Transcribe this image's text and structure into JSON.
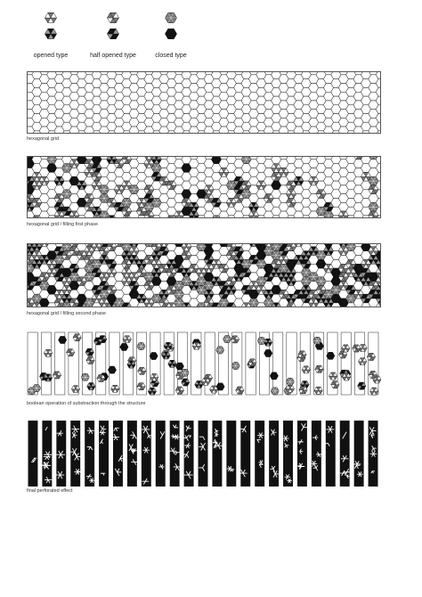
{
  "legend": {
    "opened": "opened type",
    "half_opened": "half opened type",
    "closed": "closed type"
  },
  "captions": {
    "grid": "hexagonal grid",
    "first_phase": "hexagonal grid / filling first phase",
    "second_phase": "hexagonal grid / filling second phase",
    "boolean": "boolean operation of substraction through the structure",
    "final": "final perforated effect"
  },
  "colors": {
    "ink": "#111111",
    "mid": "#777777",
    "line": "#555555",
    "paper": "#ffffff"
  }
}
